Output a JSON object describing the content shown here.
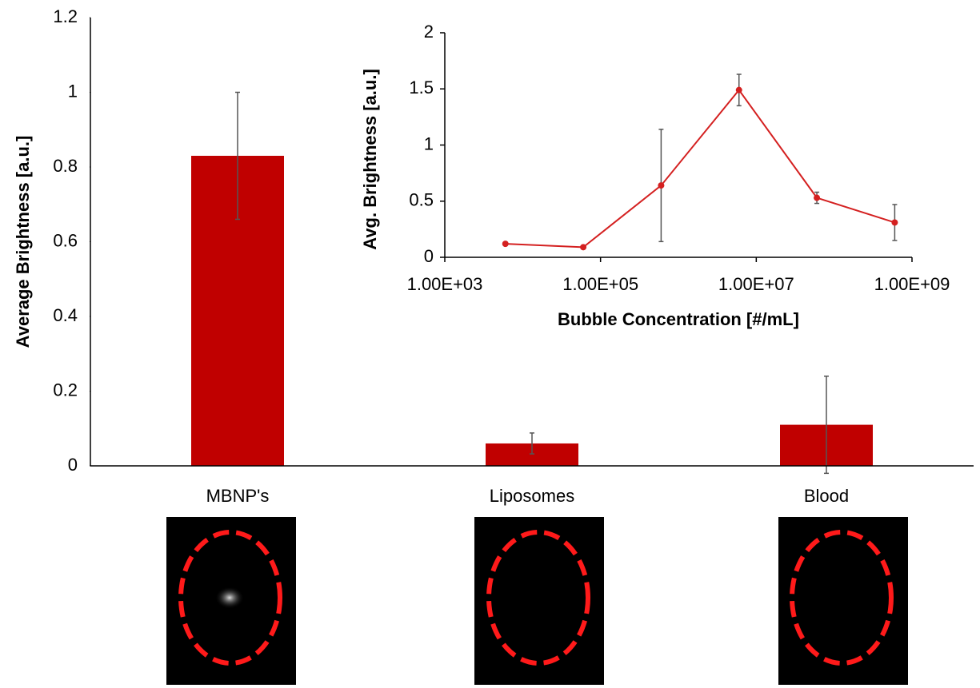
{
  "chart_data": [
    {
      "type": "bar",
      "ylabel": "Average Brightness [a.u.]",
      "categories": [
        "MBNP's",
        "Liposomes",
        "Blood"
      ],
      "values": [
        0.83,
        0.06,
        0.11
      ],
      "errors": [
        0.17,
        0.028,
        0.13
      ],
      "color": "#c00000",
      "error_color": "#555555",
      "ylim": [
        0,
        1.2
      ],
      "yticks": [
        0,
        0.2,
        0.4,
        0.6,
        0.8,
        1,
        1.2
      ],
      "grid": false
    },
    {
      "type": "line",
      "xlabel": "Bubble Concentration [#/mL]",
      "ylabel": "Avg. Brightness [a.u.]",
      "x": [
        6000,
        60000,
        600000,
        6000000,
        60000000,
        600000000
      ],
      "values": [
        0.12,
        0.09,
        0.64,
        1.49,
        0.53,
        0.31
      ],
      "errors": [
        0,
        0,
        0.5,
        0.14,
        0.05,
        0.16
      ],
      "color": "#d42020",
      "error_color": "#555555",
      "xscale": "log",
      "xlim": [
        1000,
        1000000000
      ],
      "xticks": [
        {
          "value": 1000,
          "label": "1.00E+03"
        },
        {
          "value": 100000,
          "label": "1.00E+05"
        },
        {
          "value": 10000000,
          "label": "1.00E+07"
        },
        {
          "value": 1000000000,
          "label": "1.00E+09"
        }
      ],
      "ylim": [
        0,
        2
      ],
      "yticks": [
        0,
        0.5,
        1,
        1.5,
        2
      ],
      "grid": false
    }
  ]
}
